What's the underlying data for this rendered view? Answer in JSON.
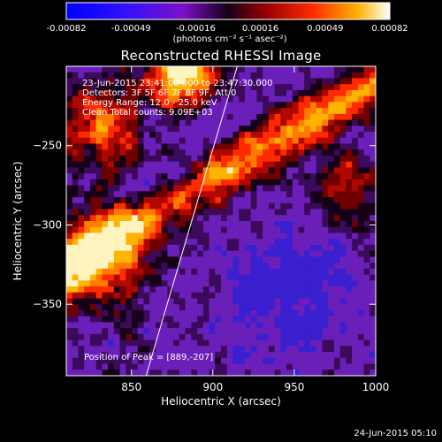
{
  "colorbar": {
    "ticks": [
      "-0.00082",
      "-0.00049",
      "-0.00016",
      "0.00016",
      "0.00049",
      "0.00082"
    ],
    "units": "(photons cm⁻² s⁻¹ asec⁻²)"
  },
  "chart_data": {
    "type": "heatmap",
    "title": "Reconstructed RHESSI Image",
    "xlabel": "Heliocentric X (arcsec)",
    "ylabel": "Heliocentric Y (arcsec)",
    "xlim": [
      810,
      1000
    ],
    "ylim": [
      -395,
      -200
    ],
    "x_ticks": [
      850,
      900,
      950,
      1000
    ],
    "y_ticks": [
      -250,
      -300,
      -350
    ],
    "x_tick_labels": [
      "850",
      "900",
      "950",
      "1000"
    ],
    "y_tick_labels": [
      "−250",
      "−300",
      "−350"
    ],
    "color_range": [
      -0.00082,
      0.00082
    ],
    "peak": [
      889,
      -207
    ],
    "limb_line": {
      "x": [
        859,
        915
      ],
      "y": [
        -395,
        -200
      ]
    },
    "annotations": [
      "23-Jun-2015 23:41:00.000 to 23:47:30.000",
      "Detectors: 3F 5F 6F 7F 8F 9F, Att 0",
      "Energy Range: 12.0 - 25.0 keV",
      "Clean    Total counts: 9.09E+03"
    ],
    "peak_label": "Position of Peak = [889,-207]"
  },
  "timestamp": "24-Jun-2015 05:10"
}
